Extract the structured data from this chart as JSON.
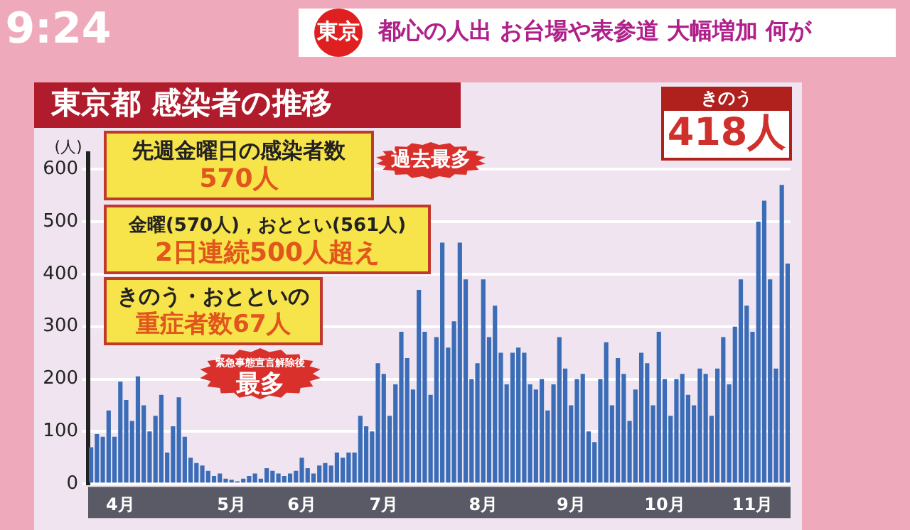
{
  "chart_data": {
    "type": "bar",
    "title": "東京都 感染者の推移",
    "subtitle": "都心の人出 お台場や表参道 大幅増加 何が",
    "ylabel": "(人)",
    "categories": [
      null,
      null,
      null,
      null,
      null,
      "4月",
      null,
      null,
      null,
      null,
      null,
      null,
      null,
      null,
      null,
      null,
      null,
      null,
      null,
      null,
      null,
      null,
      null,
      null,
      "5月",
      null,
      null,
      null,
      null,
      null,
      null,
      null,
      null,
      null,
      null,
      null,
      "6月",
      null,
      null,
      null,
      null,
      null,
      null,
      null,
      null,
      null,
      null,
      null,
      null,
      null,
      "7月",
      null,
      null,
      null,
      null,
      null,
      null,
      null,
      null,
      null,
      null,
      null,
      null,
      null,
      null,
      null,
      null,
      "8月",
      null,
      null,
      null,
      null,
      null,
      null,
      null,
      null,
      null,
      null,
      null,
      null,
      null,
      null,
      "9月",
      null,
      null,
      null,
      null,
      null,
      null,
      null,
      null,
      null,
      null,
      null,
      null,
      null,
      null,
      null,
      "10月",
      null,
      null,
      null,
      null,
      null,
      null,
      null,
      null,
      null,
      null,
      null,
      null,
      null,
      null,
      "11月",
      null,
      null,
      null,
      null,
      null,
      null
    ],
    "values": [
      70,
      95,
      90,
      140,
      90,
      195,
      160,
      120,
      205,
      150,
      100,
      130,
      170,
      60,
      110,
      165,
      90,
      50,
      40,
      35,
      25,
      15,
      20,
      10,
      8,
      5,
      10,
      15,
      20,
      10,
      30,
      25,
      20,
      15,
      20,
      25,
      50,
      30,
      20,
      35,
      40,
      35,
      60,
      50,
      60,
      60,
      130,
      110,
      100,
      230,
      210,
      130,
      190,
      290,
      240,
      180,
      370,
      290,
      170,
      280,
      460,
      260,
      310,
      460,
      390,
      200,
      230,
      390,
      280,
      340,
      250,
      190,
      250,
      260,
      250,
      190,
      180,
      200,
      140,
      190,
      280,
      220,
      150,
      200,
      210,
      100,
      80,
      200,
      270,
      150,
      240,
      210,
      120,
      180,
      250,
      230,
      150,
      290,
      200,
      130,
      200,
      210,
      170,
      150,
      220,
      210,
      130,
      220,
      280,
      190,
      300,
      390,
      340,
      290,
      500,
      540,
      390,
      220,
      570,
      420
    ],
    "color": "#3b6cb7",
    "ylim": [
      0,
      630
    ],
    "yticks": [
      0,
      100,
      200,
      300,
      400,
      500,
      600
    ],
    "grid": "y",
    "legend": false,
    "annotations": [
      "9:24",
      "東京",
      "先週金曜日の感染者数",
      "570人",
      "過去最多",
      "金曜(570人)，おととい(561人)",
      "2日連続500人超え",
      "きのう・おとといの",
      "重症者数67人",
      "緊急事態宣言解除後",
      "最多",
      "きのう",
      "418人"
    ]
  }
}
